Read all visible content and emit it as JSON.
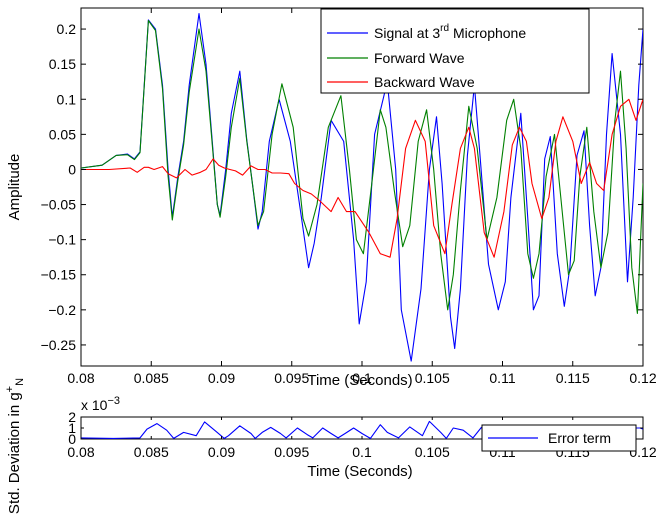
{
  "chart_data": [
    {
      "type": "line",
      "xlabel": "Time (Seconds)",
      "ylabel": "Amplitude",
      "xlim": [
        0.08,
        0.12
      ],
      "ylim": [
        -0.28,
        0.23
      ],
      "x_ticks": [
        0.08,
        0.085,
        0.09,
        0.095,
        0.1,
        0.105,
        0.11,
        0.115,
        0.12
      ],
      "x_tick_labels": [
        "0.08",
        "0.085",
        "0.09",
        "0.095",
        "0.1",
        "0.105",
        "0.11",
        "0.115",
        "0.12"
      ],
      "y_ticks": [
        0.2,
        0.15,
        0.1,
        0.05,
        0,
        -0.05,
        -0.1,
        -0.15,
        -0.2,
        -0.25
      ],
      "y_tick_labels": [
        "0.2",
        "0.15",
        "0.1",
        "0.05",
        "0",
        "−0.05",
        "−0.1",
        "−0.15",
        "−0.2",
        "−0.25"
      ],
      "grid": false,
      "legend_position": "top-right",
      "legend": [
        {
          "text": "Signal at 3",
          "sup": "rd",
          "tail": " Microphone",
          "color": "#0000ff"
        },
        {
          "text": "Forward Wave",
          "sup": "",
          "tail": "",
          "color": "#008000"
        },
        {
          "text": "Backward Wave",
          "sup": "",
          "tail": "",
          "color": "#ff0000"
        }
      ],
      "series": [
        {
          "name": "Signal at 3rd Microphone",
          "color": "#0000ff",
          "x": [
            0.08,
            0.0815,
            0.0825,
            0.0833,
            0.0838,
            0.0842,
            0.0848,
            0.0853,
            0.0858,
            0.0862,
            0.0865,
            0.0869,
            0.0873,
            0.0877,
            0.0884,
            0.0889,
            0.0893,
            0.0897,
            0.0899,
            0.0903,
            0.0907,
            0.0913,
            0.0918,
            0.0922,
            0.0926,
            0.0929,
            0.0934,
            0.0941,
            0.0949,
            0.0957,
            0.0962,
            0.0966,
            0.0971,
            0.0978,
            0.0987,
            0.0994,
            0.0998,
            0.1003,
            0.1009,
            0.1018,
            0.1024,
            0.1028,
            0.1035,
            0.1042,
            0.1048,
            0.1053,
            0.1057,
            0.1063,
            0.1066,
            0.107,
            0.1075,
            0.108,
            0.1084,
            0.109,
            0.1097,
            0.1102,
            0.1106,
            0.1113,
            0.1118,
            0.1122,
            0.1126,
            0.113,
            0.1134,
            0.1139,
            0.1144,
            0.1148,
            0.1153,
            0.1158,
            0.1162,
            0.1166,
            0.117,
            0.1174,
            0.1178,
            0.1184,
            0.1189,
            0.1193,
            0.1197,
            0.12
          ],
          "y": [
            0.002,
            0.006,
            0.02,
            0.022,
            0.015,
            0.025,
            0.213,
            0.2,
            0.12,
            0.0,
            -0.068,
            -0.01,
            0.04,
            0.12,
            0.222,
            0.15,
            0.05,
            -0.05,
            -0.065,
            0.0,
            0.08,
            0.14,
            0.042,
            -0.02,
            -0.085,
            -0.06,
            0.04,
            0.1,
            0.04,
            -0.07,
            -0.14,
            -0.105,
            -0.04,
            0.07,
            0.04,
            -0.1,
            -0.22,
            -0.16,
            0.05,
            0.125,
            0.0,
            -0.2,
            -0.273,
            -0.17,
            0.0,
            0.075,
            -0.02,
            -0.21,
            -0.255,
            -0.17,
            0.02,
            0.12,
            0.02,
            -0.135,
            -0.2,
            -0.16,
            -0.04,
            0.08,
            -0.07,
            -0.2,
            -0.18,
            0.015,
            0.047,
            -0.12,
            -0.195,
            -0.14,
            0.02,
            0.055,
            -0.08,
            -0.18,
            -0.14,
            0.05,
            0.165,
            0.05,
            -0.16,
            -0.04,
            0.12,
            0.2
          ]
        },
        {
          "name": "Forward Wave",
          "color": "#008000",
          "x": [
            0.08,
            0.0815,
            0.0825,
            0.0833,
            0.0838,
            0.0842,
            0.0848,
            0.0853,
            0.0858,
            0.0862,
            0.0865,
            0.0869,
            0.0873,
            0.0877,
            0.0884,
            0.0889,
            0.0893,
            0.0897,
            0.0899,
            0.0903,
            0.0907,
            0.0913,
            0.0918,
            0.0922,
            0.0926,
            0.093,
            0.0936,
            0.0943,
            0.0951,
            0.0958,
            0.0962,
            0.0968,
            0.0976,
            0.0985,
            0.0991,
            0.0996,
            0.1001,
            0.1007,
            0.1013,
            0.1017,
            0.1023,
            0.1029,
            0.1034,
            0.104,
            0.1046,
            0.1051,
            0.1056,
            0.1061,
            0.1065,
            0.107,
            0.1076,
            0.1082,
            0.1089,
            0.1096,
            0.1103,
            0.1108,
            0.1113,
            0.1118,
            0.1122,
            0.1126,
            0.1131,
            0.1137,
            0.1142,
            0.1147,
            0.1151,
            0.1155,
            0.116,
            0.1165,
            0.117,
            0.1175,
            0.118,
            0.1184,
            0.1188,
            0.1192,
            0.1196,
            0.12
          ],
          "y": [
            0.002,
            0.006,
            0.02,
            0.021,
            0.014,
            0.024,
            0.212,
            0.198,
            0.115,
            -0.01,
            -0.072,
            -0.015,
            0.035,
            0.11,
            0.2,
            0.14,
            0.045,
            -0.05,
            -0.068,
            -0.01,
            0.06,
            0.13,
            0.04,
            -0.02,
            -0.08,
            -0.06,
            0.05,
            0.122,
            0.06,
            -0.07,
            -0.095,
            -0.05,
            0.06,
            0.105,
            0.0,
            -0.1,
            -0.12,
            -0.02,
            0.085,
            0.06,
            -0.03,
            -0.11,
            -0.08,
            0.04,
            0.085,
            0.0,
            -0.12,
            -0.2,
            -0.15,
            -0.03,
            0.09,
            0.03,
            -0.1,
            -0.04,
            0.07,
            0.1,
            0.03,
            -0.12,
            -0.155,
            -0.12,
            -0.01,
            0.05,
            -0.05,
            -0.15,
            -0.13,
            -0.01,
            0.06,
            -0.06,
            -0.14,
            -0.09,
            0.07,
            0.14,
            0.03,
            -0.14,
            -0.205,
            -0.02
          ]
        },
        {
          "name": "Backward Wave",
          "color": "#ff0000",
          "x": [
            0.08,
            0.082,
            0.0835,
            0.084,
            0.0845,
            0.0848,
            0.0852,
            0.0858,
            0.0862,
            0.0868,
            0.0874,
            0.0879,
            0.0885,
            0.0889,
            0.0894,
            0.0898,
            0.0902,
            0.0906,
            0.091,
            0.0915,
            0.0921,
            0.0926,
            0.0931,
            0.0936,
            0.0942,
            0.0948,
            0.0952,
            0.0958,
            0.0964,
            0.097,
            0.0978,
            0.0983,
            0.0989,
            0.0995,
            0.1005,
            0.1013,
            0.102,
            0.1025,
            0.1031,
            0.1038,
            0.1045,
            0.1051,
            0.1059,
            0.1064,
            0.107,
            0.1076,
            0.108,
            0.1087,
            0.1094,
            0.1101,
            0.1107,
            0.1112,
            0.1117,
            0.1121,
            0.1128,
            0.1133,
            0.1138,
            0.1143,
            0.115,
            0.1156,
            0.1162,
            0.1167,
            0.1172,
            0.1178,
            0.1184,
            0.119,
            0.1195,
            0.12
          ],
          "y": [
            0.0,
            0.0,
            0.002,
            -0.004,
            0.003,
            0.003,
            0.0,
            0.004,
            -0.006,
            -0.012,
            0.0,
            -0.008,
            -0.004,
            0.0,
            0.015,
            0.006,
            0.002,
            0.0,
            -0.002,
            -0.008,
            0.005,
            0.0,
            0.0,
            -0.005,
            -0.005,
            -0.006,
            -0.02,
            -0.03,
            -0.035,
            -0.045,
            -0.06,
            -0.04,
            -0.06,
            -0.06,
            -0.09,
            -0.12,
            -0.125,
            -0.07,
            0.03,
            0.07,
            0.04,
            -0.08,
            -0.12,
            -0.05,
            0.03,
            0.06,
            0.03,
            -0.09,
            -0.125,
            -0.06,
            0.035,
            0.06,
            0.04,
            -0.02,
            -0.07,
            -0.04,
            0.04,
            0.075,
            0.04,
            -0.02,
            0.01,
            -0.02,
            -0.03,
            0.05,
            0.09,
            0.1,
            0.07,
            0.1
          ]
        }
      ]
    },
    {
      "type": "line",
      "xlabel": "Time (Seconds)",
      "ylabel_parts": [
        "Std. Deviation in g",
        "+",
        "N"
      ],
      "ylim": [
        0,
        2
      ],
      "xlim": [
        0.08,
        0.12
      ],
      "x_ticks": [
        0.08,
        0.085,
        0.09,
        0.095,
        0.1,
        0.105,
        0.11,
        0.115,
        0.12
      ],
      "x_tick_labels": [
        "0.08",
        "0.085",
        "0.09",
        "0.095",
        "0.1",
        "0.105",
        "0.11",
        "0.115",
        "0.12"
      ],
      "y_ticks": [
        0,
        1,
        2
      ],
      "y_tick_labels": [
        "0",
        "1",
        "2"
      ],
      "y_multiplier": "x 10",
      "y_multiplier_exp": "−3",
      "grid": false,
      "legend_position": "right",
      "legend": [
        {
          "text": "Error term",
          "color": "#0000ff"
        }
      ],
      "series": [
        {
          "name": "Error term",
          "color": "#0000ff",
          "x": [
            0.08,
            0.0823,
            0.0842,
            0.0847,
            0.0854,
            0.0861,
            0.0866,
            0.0873,
            0.0882,
            0.0888,
            0.0896,
            0.0902,
            0.0905,
            0.0913,
            0.0921,
            0.0924,
            0.0929,
            0.0935,
            0.0942,
            0.0946,
            0.0954,
            0.0961,
            0.0965,
            0.0972,
            0.0978,
            0.0983,
            0.0988,
            0.0994,
            0.1,
            0.1006,
            0.1013,
            0.1018,
            0.1026,
            0.1034,
            0.1043,
            0.1048,
            0.1056,
            0.106,
            0.1065,
            0.1072,
            0.1079,
            0.1085,
            0.109,
            0.1097,
            0.1102,
            0.1108,
            0.1113,
            0.1117,
            0.1124,
            0.1128,
            0.1134,
            0.1138,
            0.1144,
            0.1149,
            0.1155,
            0.116,
            0.1166,
            0.1171,
            0.1177,
            0.1182,
            0.1188,
            0.1193,
            0.1198,
            0.12
          ],
          "y": [
            0.1,
            0.05,
            0.1,
            0.9,
            1.4,
            0.8,
            0.05,
            0.6,
            0.3,
            1.55,
            0.7,
            0.05,
            0.3,
            1.2,
            0.5,
            0.05,
            0.6,
            1.05,
            0.5,
            0.1,
            1.0,
            0.4,
            0.1,
            1.0,
            0.5,
            0.1,
            0.5,
            1.0,
            0.5,
            0.05,
            1.3,
            0.6,
            0.1,
            1.1,
            0.3,
            1.6,
            0.6,
            0.05,
            1.0,
            0.8,
            0.1,
            1.05,
            0.3,
            1.0,
            0.05,
            0.9,
            0.2,
            1.0,
            0.05,
            1.0,
            0.2,
            1.0,
            0.05,
            1.0,
            0.3,
            1.05,
            0.1,
            1.0,
            0.1,
            1.0,
            0.2,
            1.0,
            1.0,
            0.9
          ]
        }
      ]
    }
  ]
}
